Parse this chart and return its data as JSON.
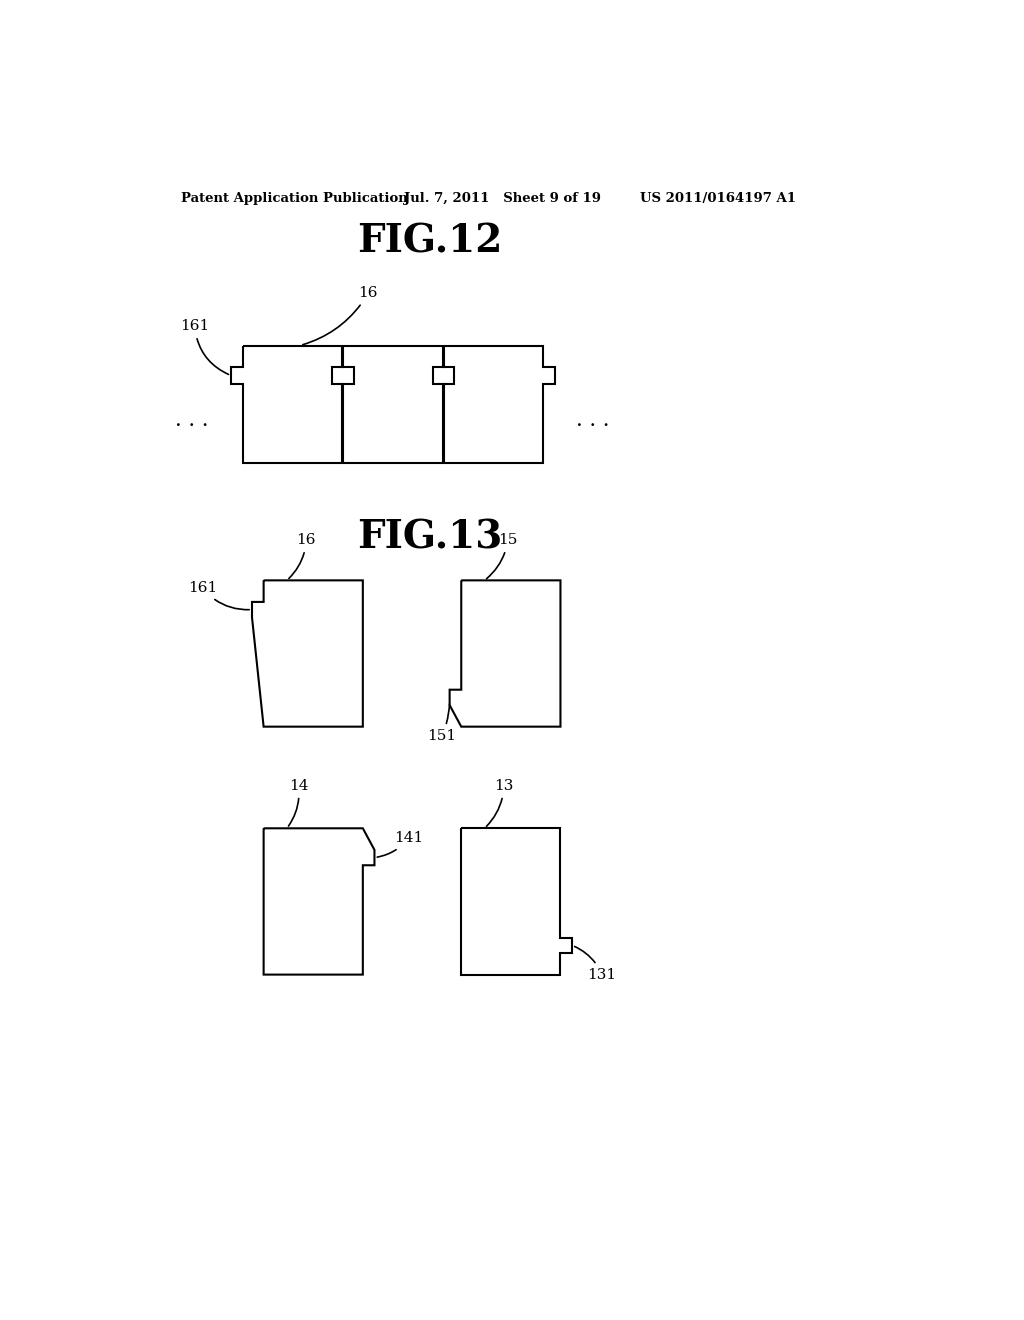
{
  "bg_color": "#ffffff",
  "line_color": "#000000",
  "line_width": 1.5,
  "header_left": "Patent Application Publication",
  "header_mid": "Jul. 7, 2011   Sheet 9 of 19",
  "header_right": "US 2011/0164197 A1",
  "fig12_title": "FIG.12",
  "fig13_title": "FIG.13",
  "fig12_label16": "16",
  "fig12_label161": "161",
  "fig13_label16": "16",
  "fig13_label161": "161",
  "fig13_label15": "15",
  "fig13_label151": "151",
  "fig13_label14": "14",
  "fig13_label141": "141",
  "fig13_label13": "13",
  "fig13_label131": "131"
}
